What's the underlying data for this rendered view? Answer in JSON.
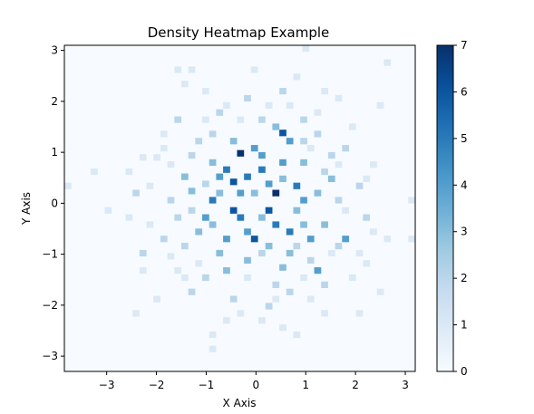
{
  "chart_data": {
    "type": "heatmap",
    "title": "Density Heatmap Example",
    "xlabel": "X Axis",
    "ylabel": "Y Axis",
    "xlim": [
      -3.85,
      3.2
    ],
    "ylim": [
      -3.3,
      3.1
    ],
    "x_ticks": [
      -3,
      -2,
      -1,
      0,
      1,
      2,
      3
    ],
    "y_ticks": [
      -3,
      -2,
      -1,
      0,
      1,
      2,
      3
    ],
    "bins": [
      50,
      50
    ],
    "colormap": "Blues",
    "colorbar": {
      "min": 0,
      "max": 7,
      "ticks": [
        0,
        1,
        2,
        3,
        4,
        5,
        6,
        7
      ]
    },
    "grid": false,
    "cells": [
      {
        "x": -0.31,
        "y": 0.98,
        "v": 7
      },
      {
        "x": 0.4,
        "y": 0.2,
        "v": 7
      },
      {
        "x": -0.03,
        "y": -0.7,
        "v": 6
      },
      {
        "x": 0.54,
        "y": 1.38,
        "v": 6
      },
      {
        "x": -0.45,
        "y": 0.42,
        "v": 6
      },
      {
        "x": 0.26,
        "y": -0.14,
        "v": 6
      },
      {
        "x": -0.45,
        "y": -0.14,
        "v": 6
      },
      {
        "x": 0.12,
        "y": 0.66,
        "v": 5
      },
      {
        "x": -0.17,
        "y": 0.52,
        "v": 5
      },
      {
        "x": 0.68,
        "y": -0.56,
        "v": 5
      },
      {
        "x": -0.59,
        "y": 0.66,
        "v": 5
      },
      {
        "x": -0.31,
        "y": -0.28,
        "v": 5
      },
      {
        "x": 0.82,
        "y": 0.34,
        "v": 5
      },
      {
        "x": -0.87,
        "y": 0.06,
        "v": 5
      },
      {
        "x": 0.4,
        "y": -0.42,
        "v": 5
      },
      {
        "x": 1.24,
        "y": -1.32,
        "v": 4
      },
      {
        "x": -0.73,
        "y": 0.52,
        "v": 4
      },
      {
        "x": 0.12,
        "y": 0.94,
        "v": 4
      },
      {
        "x": 0.54,
        "y": 0.8,
        "v": 4
      },
      {
        "x": -0.17,
        "y": -0.56,
        "v": 4
      },
      {
        "x": 0.96,
        "y": 0.06,
        "v": 4
      },
      {
        "x": -1.01,
        "y": -0.28,
        "v": 4
      },
      {
        "x": 0.26,
        "y": 0.38,
        "v": 4
      },
      {
        "x": -0.03,
        "y": 1.08,
        "v": 4
      },
      {
        "x": 1.1,
        "y": -0.7,
        "v": 4
      },
      {
        "x": -0.59,
        "y": -0.7,
        "v": 4
      },
      {
        "x": 0.68,
        "y": 1.22,
        "v": 4
      },
      {
        "x": 1.8,
        "y": -0.7,
        "v": 4
      },
      {
        "x": -0.87,
        "y": 0.8,
        "v": 3
      },
      {
        "x": 0.26,
        "y": -0.84,
        "v": 3
      },
      {
        "x": 0.96,
        "y": 0.8,
        "v": 3
      },
      {
        "x": -1.15,
        "y": -0.56,
        "v": 3
      },
      {
        "x": -0.45,
        "y": 1.22,
        "v": 3
      },
      {
        "x": 0.4,
        "y": 1.5,
        "v": 3
      },
      {
        "x": 1.24,
        "y": 0.2,
        "v": 3
      },
      {
        "x": -1.29,
        "y": 0.24,
        "v": 3
      },
      {
        "x": 0.68,
        "y": -0.98,
        "v": 3
      },
      {
        "x": -0.17,
        "y": -1.12,
        "v": 3
      },
      {
        "x": 0.54,
        "y": -1.26,
        "v": 3
      },
      {
        "x": -0.73,
        "y": -0.98,
        "v": 3
      },
      {
        "x": 1.38,
        "y": -0.42,
        "v": 3
      },
      {
        "x": -1.43,
        "y": 0.52,
        "v": 3
      },
      {
        "x": 1.52,
        "y": 0.48,
        "v": 3
      },
      {
        "x": -0.59,
        "y": -1.32,
        "v": 3
      },
      {
        "x": 0.82,
        "y": -0.14,
        "v": 3
      },
      {
        "x": 0.12,
        "y": -0.28,
        "v": 3
      },
      {
        "x": -0.03,
        "y": 0.2,
        "v": 3
      },
      {
        "x": 0.96,
        "y": -0.42,
        "v": 3
      },
      {
        "x": -0.87,
        "y": -0.42,
        "v": 3
      },
      {
        "x": 1.66,
        "y": -0.84,
        "v": 2
      },
      {
        "x": -1.57,
        "y": -0.28,
        "v": 2
      },
      {
        "x": -1.71,
        "y": 0.06,
        "v": 2
      },
      {
        "x": 1.66,
        "y": 0.06,
        "v": 2
      },
      {
        "x": -1.85,
        "y": -0.7,
        "v": 2
      },
      {
        "x": -1.29,
        "y": 0.94,
        "v": 2
      },
      {
        "x": 1.24,
        "y": 1.36,
        "v": 2
      },
      {
        "x": -0.87,
        "y": 1.36,
        "v": 2
      },
      {
        "x": 0.12,
        "y": 1.64,
        "v": 2
      },
      {
        "x": -1.01,
        "y": -1.46,
        "v": 2
      },
      {
        "x": 0.4,
        "y": -1.6,
        "v": 2
      },
      {
        "x": 1.1,
        "y": -1.12,
        "v": 2
      },
      {
        "x": -2.27,
        "y": -0.98,
        "v": 2
      },
      {
        "x": 2.08,
        "y": 0.34,
        "v": 2
      },
      {
        "x": -1.43,
        "y": -0.84,
        "v": 2
      },
      {
        "x": 1.52,
        "y": 0.94,
        "v": 2
      },
      {
        "x": -0.45,
        "y": -1.88,
        "v": 2
      },
      {
        "x": 0.26,
        "y": -2.02,
        "v": 2
      },
      {
        "x": 0.96,
        "y": 1.64,
        "v": 2
      },
      {
        "x": -1.15,
        "y": 1.22,
        "v": 2
      },
      {
        "x": -2.41,
        "y": 0.2,
        "v": 2
      },
      {
        "x": 2.22,
        "y": -0.28,
        "v": 2
      },
      {
        "x": -0.17,
        "y": 2.06,
        "v": 2
      },
      {
        "x": 0.54,
        "y": 2.2,
        "v": 2
      },
      {
        "x": -1.57,
        "y": 1.64,
        "v": 2
      },
      {
        "x": 1.8,
        "y": 1.08,
        "v": 2
      },
      {
        "x": -0.73,
        "y": 1.78,
        "v": 2
      },
      {
        "x": 0.68,
        "y": -1.74,
        "v": 2
      },
      {
        "x": 1.38,
        "y": -1.6,
        "v": 2
      },
      {
        "x": -1.29,
        "y": -1.74,
        "v": 2
      },
      {
        "x": 1.94,
        "y": -1.46,
        "v": 1
      },
      {
        "x": -1.85,
        "y": 1.36,
        "v": 1
      },
      {
        "x": 1.38,
        "y": 2.2,
        "v": 1
      },
      {
        "x": -1.01,
        "y": 2.2,
        "v": 1
      },
      {
        "x": -0.03,
        "y": 2.62,
        "v": 1
      },
      {
        "x": 0.82,
        "y": 2.48,
        "v": 1
      },
      {
        "x": -1.43,
        "y": 2.34,
        "v": 1
      },
      {
        "x": 2.36,
        "y": 0.76,
        "v": 1
      },
      {
        "x": -2.55,
        "y": 0.62,
        "v": 1
      },
      {
        "x": -2.97,
        "y": -0.14,
        "v": 1
      },
      {
        "x": 2.64,
        "y": -0.7,
        "v": 1
      },
      {
        "x": -2.27,
        "y": -1.32,
        "v": 1
      },
      {
        "x": 2.22,
        "y": -1.18,
        "v": 1
      },
      {
        "x": -0.59,
        "y": -2.3,
        "v": 1
      },
      {
        "x": 0.54,
        "y": -2.44,
        "v": 1
      },
      {
        "x": -0.87,
        "y": -2.58,
        "v": 1
      },
      {
        "x": 0.82,
        "y": -2.58,
        "v": 1
      },
      {
        "x": -2.41,
        "y": -2.16,
        "v": 1
      },
      {
        "x": 2.08,
        "y": -2.16,
        "v": 1
      },
      {
        "x": 2.5,
        "y": -1.74,
        "v": 1
      },
      {
        "x": -1.99,
        "y": -1.88,
        "v": 1
      },
      {
        "x": -0.87,
        "y": -2.86,
        "v": 1
      },
      {
        "x": 1.38,
        "y": -2.16,
        "v": 1
      },
      {
        "x": -1.57,
        "y": 2.62,
        "v": 1
      },
      {
        "x": -1.29,
        "y": 2.62,
        "v": 1
      },
      {
        "x": 1.66,
        "y": 2.06,
        "v": 1
      },
      {
        "x": 2.5,
        "y": 1.92,
        "v": 1
      },
      {
        "x": -3.81,
        "y": 0.34,
        "v": 1
      },
      {
        "x": 3.2,
        "y": 0.06,
        "v": 1
      },
      {
        "x": 3.2,
        "y": -0.7,
        "v": 1
      },
      {
        "x": 2.64,
        "y": 2.76,
        "v": 1
      },
      {
        "x": 1.0,
        "y": 3.04,
        "v": 1
      },
      {
        "x": -3.25,
        "y": 0.62,
        "v": 1
      },
      {
        "x": -2.13,
        "y": 0.34,
        "v": 1
      },
      {
        "x": 2.22,
        "y": 0.48,
        "v": 1
      },
      {
        "x": -1.71,
        "y": -1.04,
        "v": 1
      },
      {
        "x": 1.94,
        "y": 1.5,
        "v": 1
      },
      {
        "x": -1.99,
        "y": 0.9,
        "v": 1
      },
      {
        "x": 1.52,
        "y": -0.98,
        "v": 1
      },
      {
        "x": -0.31,
        "y": 1.64,
        "v": 1
      },
      {
        "x": 0.26,
        "y": 1.92,
        "v": 1
      },
      {
        "x": -0.17,
        "y": -1.46,
        "v": 1
      },
      {
        "x": -1.15,
        "y": -1.18,
        "v": 1
      },
      {
        "x": 1.1,
        "y": 1.08,
        "v": 1
      },
      {
        "x": -1.71,
        "y": 0.76,
        "v": 1
      },
      {
        "x": 1.8,
        "y": -0.14,
        "v": 1
      },
      {
        "x": -2.13,
        "y": -0.42,
        "v": 1
      },
      {
        "x": 0.96,
        "y": -1.46,
        "v": 1
      },
      {
        "x": -0.59,
        "y": 1.92,
        "v": 1
      },
      {
        "x": 0.4,
        "y": -1.88,
        "v": 1
      },
      {
        "x": -1.43,
        "y": -1.46,
        "v": 1
      },
      {
        "x": 1.24,
        "y": 1.78,
        "v": 1
      },
      {
        "x": -1.85,
        "y": 1.08,
        "v": 1
      },
      {
        "x": 2.08,
        "y": -0.98,
        "v": 1
      },
      {
        "x": -2.27,
        "y": 0.9,
        "v": 1
      },
      {
        "x": 1.66,
        "y": 0.76,
        "v": 1
      },
      {
        "x": -0.31,
        "y": -2.16,
        "v": 1
      },
      {
        "x": 0.12,
        "y": -2.3,
        "v": 1
      },
      {
        "x": 0.68,
        "y": 1.92,
        "v": 1
      },
      {
        "x": -1.01,
        "y": 1.64,
        "v": 1
      },
      {
        "x": 1.1,
        "y": -1.88,
        "v": 1
      },
      {
        "x": -1.57,
        "y": -1.32,
        "v": 1
      },
      {
        "x": 2.36,
        "y": -0.56,
        "v": 1
      },
      {
        "x": -2.55,
        "y": -0.28,
        "v": 1
      },
      {
        "x": 0.82,
        "y": -0.84,
        "v": 2
      },
      {
        "x": -0.73,
        "y": 0.2,
        "v": 3
      },
      {
        "x": 0.54,
        "y": 0.48,
        "v": 3
      },
      {
        "x": -0.31,
        "y": 0.2,
        "v": 4
      },
      {
        "x": 0.12,
        "y": -0.98,
        "v": 2
      },
      {
        "x": -1.01,
        "y": 0.38,
        "v": 2
      },
      {
        "x": 1.38,
        "y": 0.62,
        "v": 2
      },
      {
        "x": -1.29,
        "y": -0.14,
        "v": 2
      },
      {
        "x": 0.96,
        "y": 1.22,
        "v": 2
      }
    ]
  }
}
